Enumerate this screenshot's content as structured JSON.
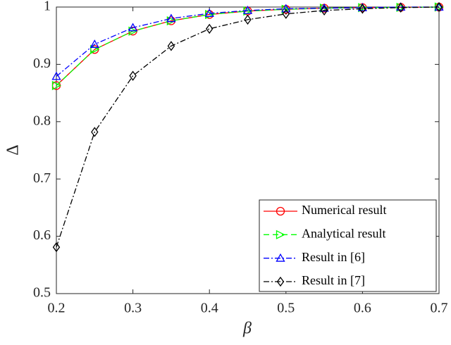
{
  "chart_data": {
    "type": "line",
    "xlabel": "β",
    "ylabel": "Δ",
    "x": [
      0.2,
      0.25,
      0.3,
      0.35,
      0.4,
      0.45,
      0.5,
      0.55,
      0.6,
      0.65,
      0.7
    ],
    "series": [
      {
        "name": "Numerical result",
        "color": "#ff0000",
        "marker": "o",
        "linestyle": "-",
        "values": [
          0.863,
          0.926,
          0.958,
          0.976,
          0.987,
          0.993,
          0.996,
          0.998,
          0.999,
          0.9995,
          1
        ]
      },
      {
        "name": "Analytical result",
        "color": "#00ff00",
        "marker": ">",
        "linestyle": "--",
        "values": [
          0.863,
          0.926,
          0.958,
          0.976,
          0.987,
          0.993,
          0.996,
          0.998,
          0.999,
          0.9995,
          1
        ]
      },
      {
        "name": "Result in [6]",
        "color": "#0000ff",
        "marker": "^",
        "linestyle": "-.",
        "values": [
          0.879,
          0.935,
          0.964,
          0.98,
          0.989,
          0.994,
          0.997,
          0.998,
          0.999,
          1,
          1
        ]
      },
      {
        "name": "Result in [7]",
        "color": "#000000",
        "marker": "d",
        "linestyle": "-.",
        "values": [
          0.581,
          0.782,
          0.88,
          0.932,
          0.962,
          0.978,
          0.988,
          0.994,
          0.997,
          0.999,
          1
        ]
      }
    ],
    "xlim": [
      0.2,
      0.7
    ],
    "xticks": [
      0.2,
      0.3,
      0.4,
      0.5,
      0.6,
      0.7
    ],
    "ylim": [
      0.5,
      1
    ],
    "yticks": [
      0.5,
      0.6,
      0.7,
      0.8,
      0.9,
      1
    ],
    "grid": false,
    "legend": "lower right"
  }
}
